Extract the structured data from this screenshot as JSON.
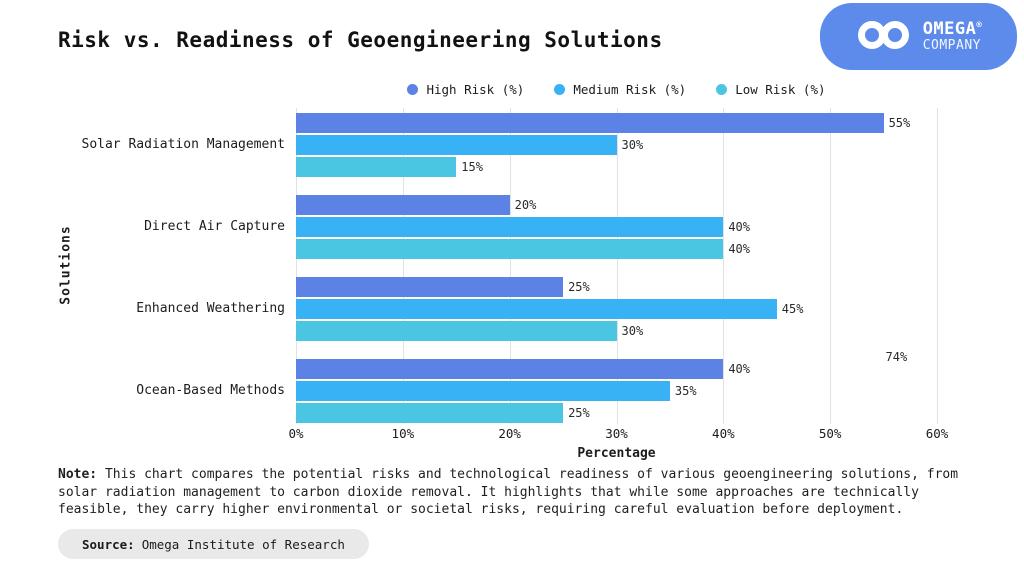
{
  "header": {
    "title": "Risk vs. Readiness of Geoengineering Solutions"
  },
  "logo": {
    "company_line1": "OMEGA",
    "registered_mark": "®",
    "company_line2": "COMPANY",
    "bg_color": "#5D8BEB"
  },
  "chart_data": {
    "type": "bar",
    "orientation": "horizontal",
    "title": "Risk vs. Readiness of Geoengineering Solutions",
    "categories": [
      "Solar Radiation Management",
      "Direct Air Capture",
      "Enhanced Weathering",
      "Ocean-Based Methods"
    ],
    "series": [
      {
        "name": "High Risk (%)",
        "color": "#5C82E5",
        "values": [
          55,
          20,
          25,
          40
        ]
      },
      {
        "name": "Medium Risk (%)",
        "color": "#38B2F5",
        "values": [
          30,
          40,
          45,
          35
        ]
      },
      {
        "name": "Low Risk (%)",
        "color": "#4BC6E2",
        "values": [
          15,
          40,
          30,
          25
        ]
      }
    ],
    "xlabel": "Percentage",
    "ylabel": "Solutions",
    "xlim": [
      0,
      60
    ],
    "x_ticks": [
      "0%",
      "10%",
      "20%",
      "30%",
      "40%",
      "50%",
      "60%"
    ],
    "value_label_suffix": "%",
    "grid": "vertical",
    "legend_position": "top-center",
    "gridline_color": "#e2e2e2",
    "stray_label": {
      "text": "74%",
      "x_value": 56.2,
      "row_index": 3
    }
  },
  "note": {
    "label": "Note:",
    "text": "This chart compares the potential risks and technological readiness of various geoengineering solutions, from solar radiation management to carbon dioxide removal. It highlights that while some approaches are technically feasible, they carry higher environmental or societal risks, requiring careful evaluation before deployment."
  },
  "source": {
    "label": "Source:",
    "text": "Omega Institute of Research"
  }
}
